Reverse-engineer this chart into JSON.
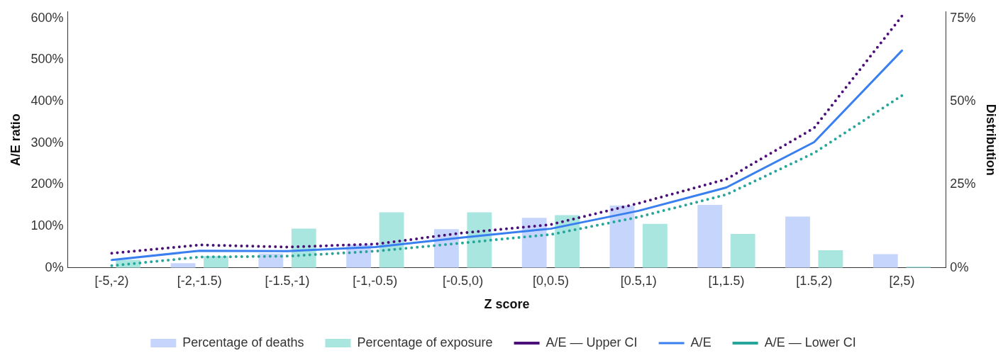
{
  "chart_data": {
    "type": "bar",
    "xlabel": "Z score",
    "ylabel": "A/E ratio",
    "y2label": "Distribution",
    "categories": [
      "[-5,-2)",
      "[-2,-1.5)",
      "[-1.5,-1)",
      "[-1,-0.5)",
      "[-0.5,0)",
      "[0,0.5)",
      "[0.5,1)",
      "[1,1.5)",
      "[1.5,2)",
      "[2,5)"
    ],
    "series": [
      {
        "name": "Percentage of deaths",
        "axis": "y2",
        "color": "#c5d5fb",
        "values": [
          null,
          1.4,
          4.3,
          7,
          11.6,
          15,
          18.7,
          18.9,
          15.4,
          4.1
        ]
      },
      {
        "name": "Percentage of exposure",
        "axis": "y2",
        "color": "#a8e6df",
        "values": [
          2.4,
          3.5,
          11.8,
          16.7,
          16.7,
          15.8,
          13.2,
          10.2,
          5.3,
          0.4
        ]
      },
      {
        "name": "A/E — Upper CI",
        "type": "line",
        "line_style": "dotted",
        "color": "#4b0f7a",
        "values": [
          35,
          55,
          50,
          57,
          84,
          104,
          155,
          213,
          336,
          605
        ]
      },
      {
        "name": "A/E",
        "type": "line",
        "line_style": "solid",
        "color": "#3a7ff0",
        "values": [
          19,
          41,
          40,
          50,
          73,
          94,
          137,
          193,
          302,
          522
        ]
      },
      {
        "name": "A/E — Lower CI",
        "type": "line",
        "line_style": "dotted",
        "color": "#26a69a",
        "values": [
          5,
          26,
          28,
          40,
          60,
          80,
          122,
          176,
          276,
          414
        ]
      }
    ],
    "ylim": [
      0,
      615
    ],
    "yticks": [
      {
        "value": 0,
        "label": "0%"
      },
      {
        "value": 100,
        "label": "100%"
      },
      {
        "value": 200,
        "label": "200%"
      },
      {
        "value": 300,
        "label": "300%"
      },
      {
        "value": 400,
        "label": "400%"
      },
      {
        "value": 500,
        "label": "500%"
      },
      {
        "value": 600,
        "label": "600%"
      }
    ],
    "y2lim": [
      0,
      76.875
    ],
    "y2ticks": [
      {
        "value": 0,
        "label": "0%"
      },
      {
        "value": 25,
        "label": "25%"
      },
      {
        "value": 50,
        "label": "50%"
      },
      {
        "value": 75,
        "label": "75%"
      }
    ],
    "grid": false,
    "legend": "bottom",
    "marker": "none"
  }
}
